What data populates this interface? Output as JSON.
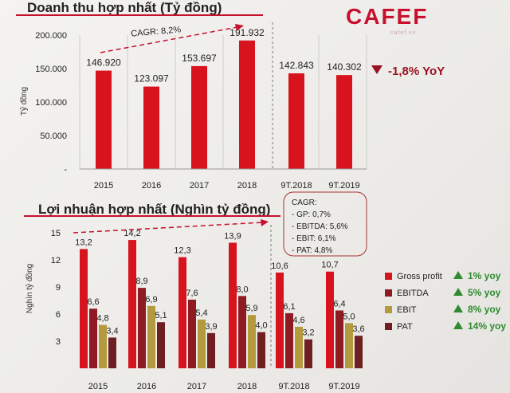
{
  "brand": {
    "logo_text": "CAFEF",
    "logo_sub": "cafef.vn",
    "color": "#c8102e"
  },
  "charts": [
    {
      "type": "bar",
      "title": "Doanh thu hợp nhất (Tỷ đồng)",
      "ylabel": "Tỷ đồng",
      "ylim": [
        0,
        200000
      ],
      "yticks": [
        "-",
        "50.000",
        "100.000",
        "150.000",
        "200.000"
      ],
      "categories": [
        "2015",
        "2016",
        "2017",
        "2018",
        "9T.2018",
        "9T.2019"
      ],
      "values": [
        146920,
        123097,
        153697,
        191932,
        142843,
        140302
      ],
      "value_labels": [
        "146.920",
        "123.097",
        "153.697",
        "191.932",
        "142.843",
        "140.302"
      ],
      "cagr_label": "CAGR: 8,2%",
      "yoy_label": "-1,8% YoY",
      "bar_color": "#d7141e",
      "yoy_color": "#9b1320"
    },
    {
      "type": "bar",
      "title": "Lợi nhuận hợp nhất (Nghìn tỷ đồng)",
      "ylabel": "Nghìn tỷ đồng",
      "ylim": [
        0,
        15
      ],
      "yticks": [
        "3",
        "6",
        "9",
        "12",
        "15"
      ],
      "categories": [
        "2015",
        "2016",
        "2017",
        "2018",
        "9T.2018",
        "9T.2019"
      ],
      "series": [
        {
          "name": "Gross profit",
          "color": "#d7141e",
          "values": [
            13.2,
            14.2,
            12.3,
            13.9,
            10.6,
            10.7
          ],
          "labels": [
            "13,2",
            "14,2",
            "12,3",
            "13,9",
            "10,6",
            "10,7"
          ]
        },
        {
          "name": "EBITDA",
          "color": "#8e1a22",
          "values": [
            6.6,
            8.9,
            7.6,
            8.0,
            6.1,
            6.4
          ],
          "labels": [
            "6,6",
            "8,9",
            "7,6",
            "8,0",
            "6,1",
            "6,4"
          ]
        },
        {
          "name": "EBIT",
          "color": "#b49a3e",
          "values": [
            4.8,
            6.9,
            5.4,
            5.9,
            4.6,
            5.0
          ],
          "labels": [
            "4,8",
            "6,9",
            "5,4",
            "5,9",
            "4,6",
            "5,0"
          ]
        },
        {
          "name": "PAT",
          "color": "#6f1e22",
          "values": [
            3.4,
            5.1,
            3.9,
            4.0,
            3.2,
            3.6
          ],
          "labels": [
            "3,4",
            "5,1",
            "3,9",
            "4,0",
            "3,2",
            "3,6"
          ]
        }
      ],
      "cagr_box": [
        "CAGR:",
        "- GP: 0,7%",
        "- EBITDA: 5,6%",
        "- EBIT: 6,1%",
        "- PAT: 4,8%"
      ],
      "yoy_labels": [
        "1% yoy",
        "5% yoy",
        "8% yoy",
        "14% yoy"
      ],
      "yoy_color": "#2e8b2e"
    }
  ]
}
